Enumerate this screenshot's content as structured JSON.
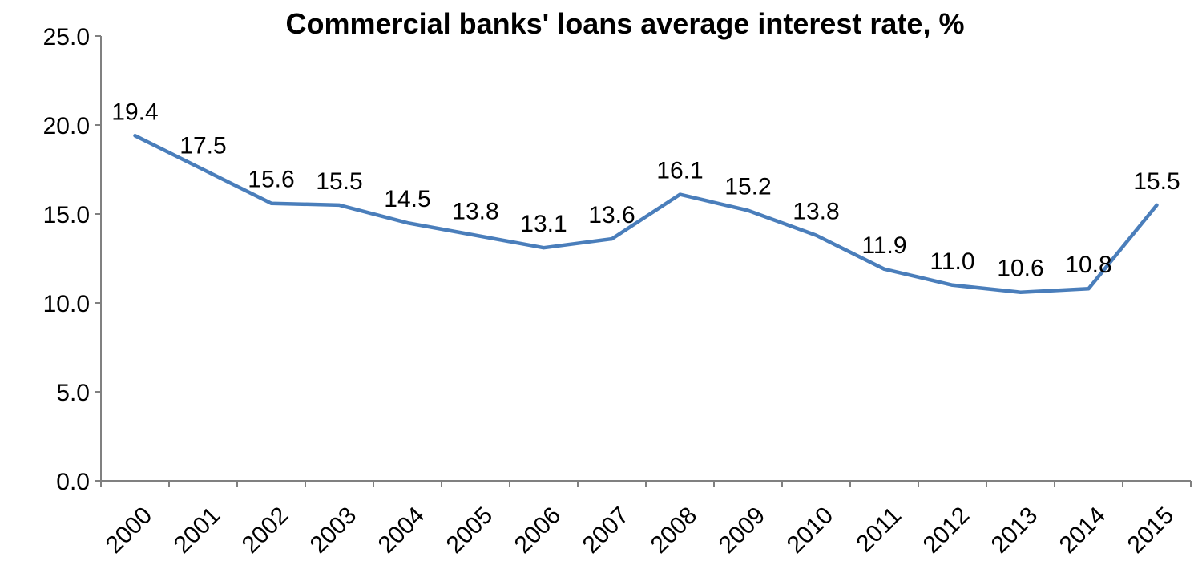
{
  "chart_data": {
    "type": "line",
    "title": "Commercial banks' loans average interest rate, %",
    "xlabel": "",
    "ylabel": "",
    "categories": [
      "2000",
      "2001",
      "2002",
      "2003",
      "2004",
      "2005",
      "2006",
      "2007",
      "2008",
      "2009",
      "2010",
      "2011",
      "2012",
      "2013",
      "2014",
      "2015"
    ],
    "series": [
      {
        "values": [
          19.4,
          17.5,
          15.6,
          15.5,
          14.5,
          13.8,
          13.1,
          13.6,
          16.1,
          15.2,
          13.8,
          11.9,
          11.0,
          10.6,
          10.8,
          15.5
        ],
        "color": "#4a7ebb"
      }
    ],
    "data_labels": [
      "19.4",
      "17.5",
      "15.6",
      "15.5",
      "14.5",
      "13.8",
      "13.1",
      "13.6",
      "16.1",
      "15.2",
      "13.8",
      "11.9",
      "11.0",
      "10.6",
      "10.8",
      "15.5"
    ],
    "ylim": [
      0,
      25
    ],
    "y_ticks": [
      0,
      5,
      10,
      15,
      20,
      25
    ],
    "y_tick_labels": [
      "0.0",
      "5.0",
      "10.0",
      "15.0",
      "20.0",
      "25.0"
    ],
    "grid": false,
    "legend": "none"
  }
}
